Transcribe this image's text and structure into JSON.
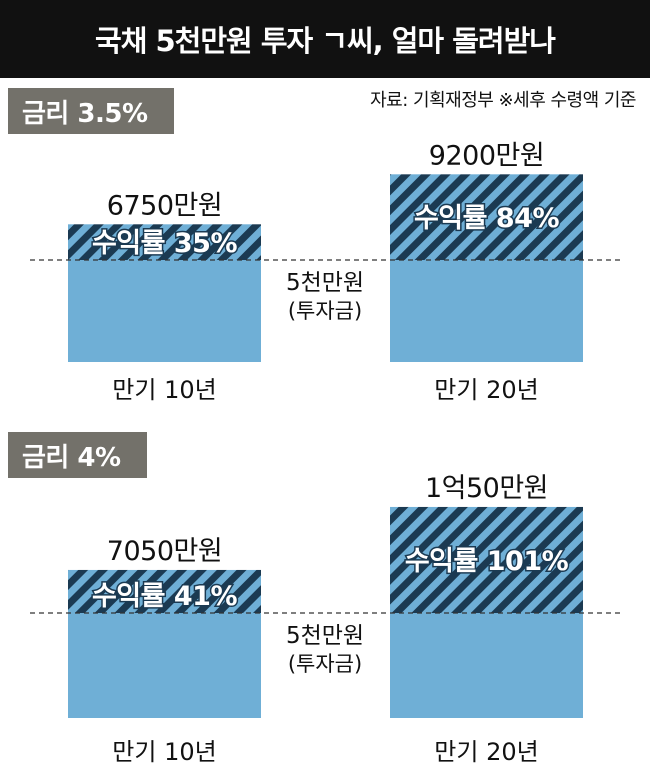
{
  "title": "국채 5천만원 투자 ㄱ씨, 얼마 돌려받나",
  "source": "자료: 기획재정부  ※세후 수령액 기준",
  "colors": {
    "principal": "#6fafd6",
    "hatch_dark": "#1b3a52",
    "hatch_light": "#6fafd6",
    "badge": "#73716a",
    "title_bg": "#111111"
  },
  "middle_label": "5천만원",
  "middle_sub": "(투자금)",
  "chart_data": [
    {
      "type": "bar",
      "rate_label": "금리 3.5%",
      "categories": [
        "만기 10년",
        "만기 20년"
      ],
      "principal": 5000,
      "values": [
        6750,
        9200
      ],
      "total_labels": [
        "6750만원",
        "9200만원"
      ],
      "return_labels": [
        "수익률 35%",
        "수익률 84%"
      ],
      "unit": "만원"
    },
    {
      "type": "bar",
      "rate_label": "금리 4%",
      "categories": [
        "만기 10년",
        "만기 20년"
      ],
      "principal": 5000,
      "values": [
        7050,
        10050
      ],
      "total_labels": [
        "7050만원",
        "1억50만원"
      ],
      "return_labels": [
        "수익률 41%",
        "수익률 101%"
      ],
      "unit": "만원"
    }
  ]
}
